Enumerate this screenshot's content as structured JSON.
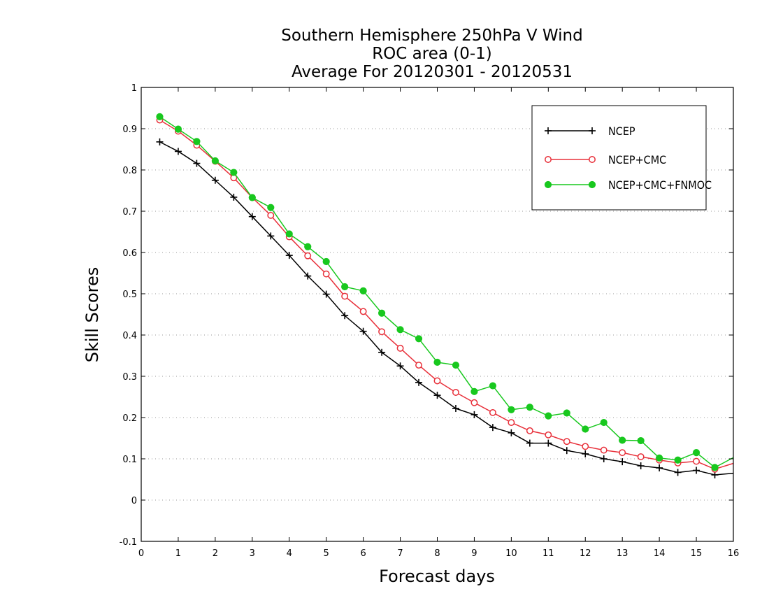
{
  "chart_data": {
    "type": "line",
    "title_lines": [
      "Southern Hemisphere 250hPa V Wind",
      "ROC area (0-1)",
      "Average For 20120301 - 20120531"
    ],
    "xlabel": "Forecast days",
    "ylabel": "Skill Scores",
    "xlim": [
      0,
      16
    ],
    "ylim": [
      -0.1,
      1
    ],
    "x_ticks": [
      "0",
      "1",
      "2",
      "3",
      "4",
      "5",
      "6",
      "7",
      "8",
      "9",
      "10",
      "11",
      "12",
      "13",
      "14",
      "15",
      "16"
    ],
    "y_ticks": [
      "-0.1",
      "0",
      "0.1",
      "0.2",
      "0.3",
      "0.4",
      "0.5",
      "0.6",
      "0.7",
      "0.8",
      "0.9",
      "1"
    ],
    "grid": "horizontal dotted",
    "legend_position": "top-right",
    "x": [
      0.5,
      1,
      1.5,
      2,
      2.5,
      3,
      3.5,
      4,
      4.5,
      5,
      5.5,
      6,
      6.5,
      7,
      7.5,
      8,
      8.5,
      9,
      9.5,
      10,
      10.5,
      11,
      11.5,
      12,
      12.5,
      13,
      13.5,
      14,
      14.5,
      15,
      15.5,
      16
    ],
    "series": [
      {
        "name": "NCEP",
        "color": "#000000",
        "marker": "plus",
        "values": [
          0.868,
          0.845,
          0.816,
          0.775,
          0.734,
          0.687,
          0.64,
          0.593,
          0.543,
          0.499,
          0.447,
          0.409,
          0.358,
          0.325,
          0.285,
          0.254,
          0.222,
          0.207,
          0.176,
          0.163,
          0.138,
          0.138,
          0.12,
          0.112,
          0.1,
          0.093,
          0.083,
          0.078,
          0.067,
          0.072,
          0.061,
          0.065
        ]
      },
      {
        "name": "NCEP+CMC",
        "color": "#e8303a",
        "marker": "open-circle",
        "values": [
          0.921,
          0.894,
          0.86,
          0.821,
          0.781,
          0.733,
          0.69,
          0.638,
          0.592,
          0.548,
          0.494,
          0.457,
          0.408,
          0.368,
          0.327,
          0.289,
          0.261,
          0.236,
          0.212,
          0.188,
          0.168,
          0.158,
          0.142,
          0.13,
          0.121,
          0.115,
          0.105,
          0.097,
          0.09,
          0.094,
          0.075,
          0.089
        ]
      },
      {
        "name": "NCEP+CMC+FNMOC",
        "color": "#18c81e",
        "marker": "filled-circle",
        "values": [
          0.929,
          0.899,
          0.869,
          0.822,
          0.794,
          0.733,
          0.709,
          0.645,
          0.614,
          0.578,
          0.517,
          0.507,
          0.453,
          0.413,
          0.391,
          0.334,
          0.327,
          0.263,
          0.277,
          0.219,
          0.225,
          0.204,
          0.211,
          0.172,
          0.188,
          0.145,
          0.144,
          0.102,
          0.097,
          0.115,
          0.079,
          0.103
        ]
      }
    ]
  }
}
